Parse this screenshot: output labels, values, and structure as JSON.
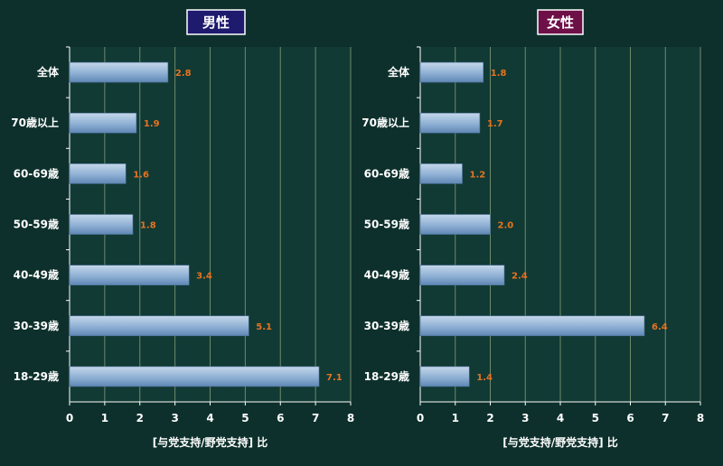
{
  "colors": {
    "background": "#0d302c",
    "plot_background": "#113a35",
    "gridline": "#6e8a6a",
    "axis": "#ffffff",
    "bar_light": "#c4d7ea",
    "bar_dark": "#6d95c0",
    "value_label": "#e8731e",
    "title_box_male": "#1e1a6e",
    "title_box_female": "#6e1048"
  },
  "chart_data": [
    {
      "type": "bar",
      "orientation": "horizontal",
      "title": "男性",
      "categories": [
        "全体",
        "70歳以上",
        "60-69歳",
        "50-59歳",
        "40-49歳",
        "30-39歳",
        "18-29歳"
      ],
      "values": [
        2.8,
        1.9,
        1.6,
        1.8,
        3.4,
        5.1,
        7.1
      ],
      "value_labels": [
        "2.8",
        "1.9",
        "1.6",
        "1.8",
        "3.4",
        "5.1",
        "7.1"
      ],
      "xlabel": "[与党支持/野党支持] 比",
      "xlim": [
        0,
        8
      ],
      "xticks": [
        "0",
        "1",
        "2",
        "3",
        "4",
        "5",
        "6",
        "7",
        "8"
      ],
      "grid": true
    },
    {
      "type": "bar",
      "orientation": "horizontal",
      "title": "女性",
      "categories": [
        "全体",
        "70歳以上",
        "60-69歳",
        "50-59歳",
        "40-49歳",
        "30-39歳",
        "18-29歳"
      ],
      "values": [
        1.8,
        1.7,
        1.2,
        2.0,
        2.4,
        6.4,
        1.4
      ],
      "value_labels": [
        "1.8",
        "1.7",
        "1.2",
        "2.0",
        "2.4",
        "6.4",
        "1.4"
      ],
      "xlabel": "[与党支持/野党支持] 比",
      "xlim": [
        0,
        8
      ],
      "xticks": [
        "0",
        "1",
        "2",
        "3",
        "4",
        "5",
        "6",
        "7",
        "8"
      ],
      "grid": true
    }
  ]
}
